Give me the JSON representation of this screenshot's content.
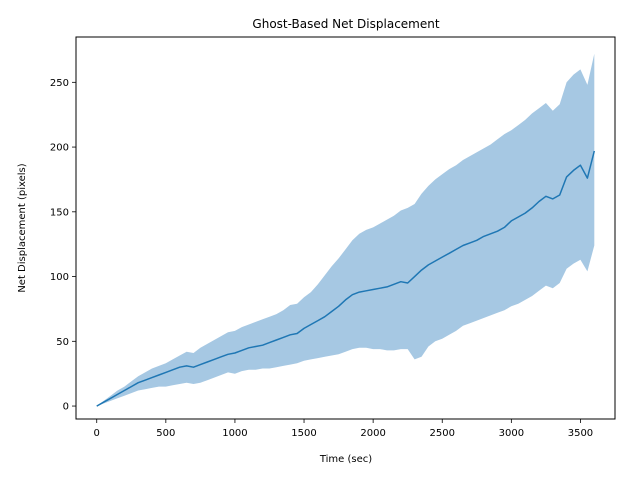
{
  "chart_data": {
    "type": "line",
    "title": "Ghost-Based Net Displacement",
    "xlabel": "Time (sec)",
    "ylabel": "Net Displacement (pixels)",
    "xlim": [
      -150,
      3750
    ],
    "ylim": [
      -10,
      285
    ],
    "xticks": [
      0,
      500,
      1000,
      1500,
      2000,
      2500,
      3000,
      3500
    ],
    "yticks": [
      0,
      50,
      100,
      150,
      200,
      250
    ],
    "grid": false,
    "legend": "none",
    "colors": {
      "line": "#1f77b4",
      "band": "#a6c8e3"
    },
    "series": [
      {
        "kind": "mean-line",
        "x": [
          0,
          50,
          100,
          150,
          200,
          250,
          300,
          350,
          400,
          450,
          500,
          550,
          600,
          650,
          700,
          750,
          800,
          850,
          900,
          950,
          1000,
          1050,
          1100,
          1150,
          1200,
          1250,
          1300,
          1350,
          1400,
          1450,
          1500,
          1550,
          1600,
          1650,
          1700,
          1750,
          1800,
          1850,
          1900,
          1950,
          2000,
          2050,
          2100,
          2150,
          2200,
          2250,
          2300,
          2350,
          2400,
          2450,
          2500,
          2550,
          2600,
          2650,
          2700,
          2750,
          2800,
          2850,
          2900,
          2950,
          3000,
          3050,
          3100,
          3150,
          3200,
          3250,
          3300,
          3350,
          3400,
          3450,
          3500,
          3550,
          3600
        ],
        "y": [
          0,
          3,
          6,
          9,
          12,
          15,
          18,
          20,
          22,
          24,
          26,
          28,
          30,
          31,
          30,
          32,
          34,
          36,
          38,
          40,
          41,
          43,
          45,
          46,
          47,
          49,
          51,
          53,
          55,
          56,
          60,
          63,
          66,
          69,
          73,
          77,
          82,
          86,
          88,
          89,
          90,
          91,
          92,
          94,
          96,
          95,
          100,
          105,
          109,
          112,
          115,
          118,
          121,
          124,
          126,
          128,
          131,
          133,
          135,
          138,
          143,
          146,
          149,
          153,
          158,
          162,
          160,
          163,
          177,
          182,
          186,
          176,
          197
        ]
      },
      {
        "kind": "upper-bound",
        "x": [
          0,
          50,
          100,
          150,
          200,
          250,
          300,
          350,
          400,
          450,
          500,
          550,
          600,
          650,
          700,
          750,
          800,
          850,
          900,
          950,
          1000,
          1050,
          1100,
          1150,
          1200,
          1250,
          1300,
          1350,
          1400,
          1450,
          1500,
          1550,
          1600,
          1650,
          1700,
          1750,
          1800,
          1850,
          1900,
          1950,
          2000,
          2050,
          2100,
          2150,
          2200,
          2250,
          2300,
          2350,
          2400,
          2450,
          2500,
          2550,
          2600,
          2650,
          2700,
          2750,
          2800,
          2850,
          2900,
          2950,
          3000,
          3050,
          3100,
          3150,
          3200,
          3250,
          3300,
          3350,
          3400,
          3450,
          3500,
          3550,
          3600
        ],
        "y": [
          0,
          4,
          8,
          12,
          15,
          19,
          23,
          26,
          29,
          31,
          33,
          36,
          39,
          42,
          41,
          45,
          48,
          51,
          54,
          57,
          58,
          61,
          63,
          65,
          67,
          69,
          71,
          74,
          78,
          79,
          84,
          88,
          94,
          101,
          108,
          114,
          121,
          128,
          133,
          136,
          138,
          141,
          144,
          147,
          151,
          153,
          156,
          164,
          170,
          175,
          179,
          183,
          186,
          190,
          193,
          196,
          199,
          202,
          206,
          210,
          213,
          217,
          221,
          226,
          230,
          234,
          228,
          233,
          250,
          256,
          260,
          248,
          272
        ]
      },
      {
        "kind": "lower-bound",
        "x": [
          0,
          50,
          100,
          150,
          200,
          250,
          300,
          350,
          400,
          450,
          500,
          550,
          600,
          650,
          700,
          750,
          800,
          850,
          900,
          950,
          1000,
          1050,
          1100,
          1150,
          1200,
          1250,
          1300,
          1350,
          1400,
          1450,
          1500,
          1550,
          1600,
          1650,
          1700,
          1750,
          1800,
          1850,
          1900,
          1950,
          2000,
          2050,
          2100,
          2150,
          2200,
          2250,
          2300,
          2350,
          2400,
          2450,
          2500,
          2550,
          2600,
          2650,
          2700,
          2750,
          2800,
          2850,
          2900,
          2950,
          3000,
          3050,
          3100,
          3150,
          3200,
          3250,
          3300,
          3350,
          3400,
          3450,
          3500,
          3550,
          3600
        ],
        "y": [
          0,
          2,
          4,
          6,
          8,
          10,
          12,
          13,
          14,
          15,
          15,
          16,
          17,
          18,
          17,
          18,
          20,
          22,
          24,
          26,
          25,
          27,
          28,
          28,
          29,
          29,
          30,
          31,
          32,
          33,
          35,
          36,
          37,
          38,
          39,
          40,
          42,
          44,
          45,
          45,
          44,
          44,
          43,
          43,
          44,
          44,
          36,
          38,
          46,
          50,
          52,
          55,
          58,
          62,
          64,
          66,
          68,
          70,
          72,
          74,
          77,
          79,
          82,
          85,
          89,
          93,
          91,
          95,
          106,
          110,
          113,
          104,
          124
        ]
      }
    ]
  }
}
